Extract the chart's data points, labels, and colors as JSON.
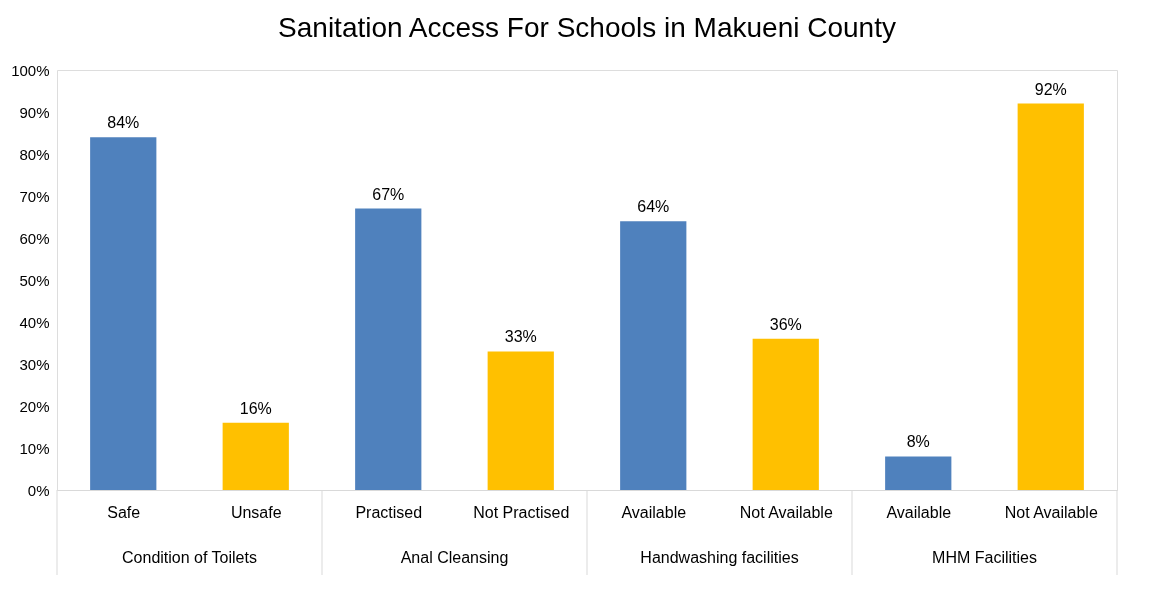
{
  "chart_data": {
    "type": "bar",
    "title": "Sanitation Access For Schools in Makueni County",
    "categories": [
      "Safe",
      "Unsafe",
      "Practised",
      "Not Practised",
      "Available",
      "Not Available",
      "Available",
      "Not Available"
    ],
    "values": [
      84,
      16,
      67,
      33,
      64,
      36,
      8,
      92
    ],
    "colors": [
      "#4f81bd",
      "#ffc000",
      "#4f81bd",
      "#ffc000",
      "#4f81bd",
      "#ffc000",
      "#4f81bd",
      "#ffc000"
    ],
    "value_labels": [
      "84%",
      "16%",
      "67%",
      "33%",
      "64%",
      "36%",
      "8%",
      "92%"
    ],
    "annotations": [
      "Condition of Toilets",
      "Anal Cleansing",
      "Handwashing facilities",
      "MHM Facilities"
    ],
    "ylim": [
      0,
      100
    ],
    "yticks": [
      {
        "value": 0,
        "label": "0%"
      },
      {
        "value": 10,
        "label": "10%"
      },
      {
        "value": 20,
        "label": "20%"
      },
      {
        "value": 30,
        "label": "30%"
      },
      {
        "value": 40,
        "label": "40%"
      },
      {
        "value": 50,
        "label": "50%"
      },
      {
        "value": 60,
        "label": "60%"
      },
      {
        "value": 70,
        "label": "70%"
      },
      {
        "value": 80,
        "label": "80%"
      },
      {
        "value": 90,
        "label": "90%"
      },
      {
        "value": 100,
        "label": "100%"
      }
    ],
    "grid": false
  }
}
